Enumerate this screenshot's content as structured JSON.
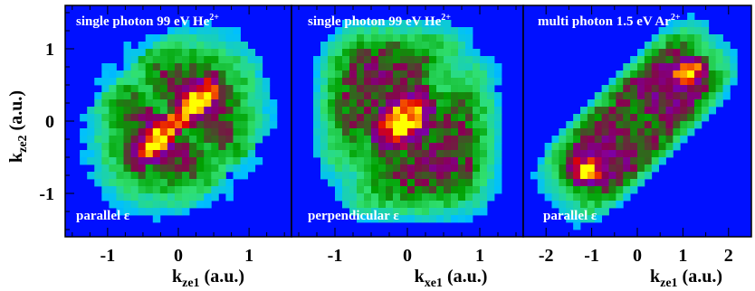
{
  "colors": {
    "background": "#ffffff",
    "plot_background": "#0010ff",
    "frame": "#000000",
    "annotation_text": "#ffffff",
    "colormap": [
      "#0010ff",
      "#00c0ff",
      "#30e070",
      "#00a000",
      "#8a0050",
      "#7a00a8",
      "#e00000",
      "#ff8000",
      "#ffff00"
    ]
  },
  "ylabel": {
    "main": "k",
    "sub": "ze2",
    "unit": " (a.u.)"
  },
  "chart_data": [
    {
      "type": "heatmap",
      "title": {
        "main": "single photon 99 eV He",
        "sup": "2+"
      },
      "annotation": "parallel ε",
      "xlabel": {
        "main": "k",
        "sub": "ze1",
        "unit": " (a.u.)"
      },
      "xlim": [
        -1.6,
        1.6
      ],
      "ylim": [
        -1.6,
        1.6
      ],
      "xticks": [
        {
          "value": -1,
          "label": "-1"
        },
        {
          "value": 0,
          "label": "0"
        },
        {
          "value": 1,
          "label": "1"
        }
      ],
      "yticks": [
        {
          "value": 1,
          "label": "1"
        },
        {
          "value": 0,
          "label": "0"
        },
        {
          "value": -1,
          "label": "-1"
        }
      ],
      "peaks": [
        {
          "x": -0.35,
          "y": -0.3,
          "intensity": 1.0
        },
        {
          "x": 0.3,
          "y": 0.3,
          "intensity": 1.0
        }
      ]
    },
    {
      "type": "heatmap",
      "title": {
        "main": "single photon 99 eV He",
        "sup": "2+"
      },
      "annotation": "perpendicular ε",
      "xlabel": {
        "main": "k",
        "sub": "xe1",
        "unit": " (a.u.)"
      },
      "xlim": [
        -1.6,
        1.6
      ],
      "ylim": [
        -1.6,
        1.6
      ],
      "xticks": [
        {
          "value": -1,
          "label": "-1"
        },
        {
          "value": 0,
          "label": "0"
        },
        {
          "value": 1,
          "label": "1"
        }
      ],
      "yticks": [],
      "peaks": [
        {
          "x": -0.05,
          "y": 0.0,
          "intensity": 1.0
        }
      ]
    },
    {
      "type": "heatmap",
      "title": {
        "main": "multi photon 1.5 eV Ar",
        "sup": "2+"
      },
      "annotation": "parallel ε",
      "xlabel": {
        "main": "k",
        "sub": "ze1",
        "unit": " (a.u.)"
      },
      "xlim": [
        -2.5,
        2.5
      ],
      "ylim": [
        -2.5,
        2.5
      ],
      "xticks": [
        {
          "value": -2,
          "label": "-2"
        },
        {
          "value": -1,
          "label": "-1"
        },
        {
          "value": 0,
          "label": "0"
        },
        {
          "value": 1,
          "label": "1"
        },
        {
          "value": 2,
          "label": "2"
        }
      ],
      "yticks": [],
      "peaks": [
        {
          "x": -1.1,
          "y": -1.05,
          "intensity": 1.0
        },
        {
          "x": 1.1,
          "y": 1.05,
          "intensity": 1.0
        }
      ]
    }
  ]
}
